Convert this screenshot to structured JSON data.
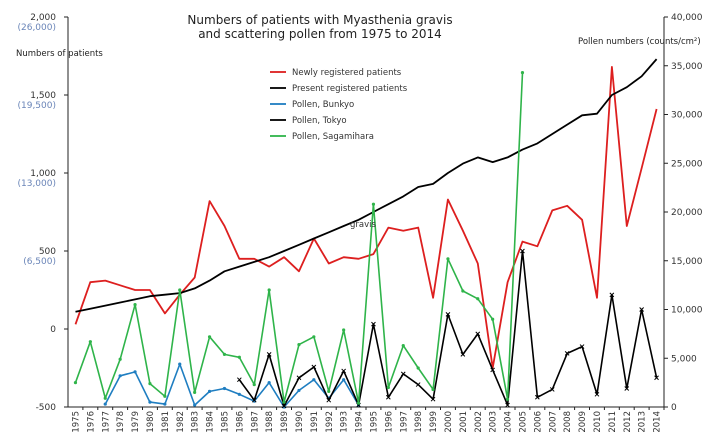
{
  "chart_data": {
    "type": "line",
    "title": [
      "Numbers of patients with Myasthenia gravis",
      "and  scattering pollen from 1975 to 2014"
    ],
    "ylabel_left": "Numbers of patients",
    "ylabel_right": "Pollen numbers (counts/cm²)",
    "yticks_left": [
      "2,000",
      "1,500",
      "1,000",
      "500",
      "0",
      "-500"
    ],
    "yticks_left_secondary": [
      "(26,000)",
      "(19,500)",
      "(13,000)",
      "(6,500)"
    ],
    "yticks_right": [
      "40,000",
      "35,000",
      "30,000",
      "25,000",
      "20,000",
      "15,000",
      "10,000",
      "5,000",
      "0"
    ],
    "ylim_left": [
      -500,
      2000
    ],
    "ylim_right": [
      0,
      40000
    ],
    "annotation": "gravis",
    "grid": false,
    "legend_position": "upper-left-center",
    "x": [
      1975,
      1976,
      1977,
      1978,
      1979,
      1980,
      1981,
      1982,
      1983,
      1984,
      1985,
      1986,
      1987,
      1988,
      1989,
      1990,
      1991,
      1992,
      1993,
      1994,
      1995,
      1996,
      1997,
      1998,
      1999,
      2000,
      2001,
      2002,
      2003,
      2004,
      2005,
      2006,
      2007,
      2008,
      2009,
      2010,
      2011,
      2012,
      2013,
      2014
    ],
    "series": [
      {
        "name": "Newly registered patients",
        "axis": "left",
        "color": "#dd1f1f",
        "values": [
          30,
          300,
          310,
          280,
          250,
          250,
          100,
          220,
          330,
          820,
          660,
          450,
          450,
          400,
          460,
          370,
          580,
          420,
          460,
          450,
          480,
          650,
          630,
          650,
          200,
          830,
          630,
          420,
          -250,
          300,
          560,
          530,
          760,
          790,
          700,
          200,
          1680,
          660,
          1030,
          1410
        ]
      },
      {
        "name": "Present registered patients",
        "axis": "left",
        "color": "#000000",
        "values": [
          110,
          130,
          150,
          170,
          190,
          210,
          220,
          230,
          260,
          310,
          370,
          400,
          430,
          460,
          500,
          540,
          580,
          620,
          660,
          700,
          750,
          800,
          850,
          910,
          930,
          1000,
          1060,
          1100,
          1070,
          1100,
          1150,
          1190,
          1250,
          1310,
          1370,
          1380,
          1500,
          1550,
          1620,
          1730
        ]
      },
      {
        "name": "Pollen, Bunkyo",
        "axis": "right",
        "color": "#1f7ec1",
        "values": [
          null,
          null,
          300,
          3200,
          3600,
          500,
          300,
          4400,
          200,
          1600,
          1900,
          1300,
          600,
          2500,
          0,
          1700,
          2800,
          900,
          2800,
          200,
          null,
          null,
          null,
          null,
          null,
          null,
          null,
          null,
          null,
          null,
          null,
          null,
          null,
          null,
          null,
          null,
          null,
          null,
          null,
          null
        ]
      },
      {
        "name": "Pollen, Tokyo",
        "axis": "right",
        "color": "#000000",
        "values": [
          null,
          null,
          null,
          null,
          null,
          null,
          null,
          null,
          null,
          null,
          null,
          2800,
          700,
          5400,
          100,
          3000,
          4100,
          700,
          3700,
          200,
          8500,
          1000,
          3400,
          2300,
          800,
          9500,
          5400,
          7500,
          3800,
          200,
          16000,
          1000,
          1800,
          5500,
          6200,
          1300,
          11500,
          1900,
          10000,
          3000
        ]
      },
      {
        "name": "Pollen, Sagamihara",
        "axis": "right",
        "color": "#2fb44a",
        "values": [
          2500,
          6700,
          900,
          4900,
          10500,
          2400,
          1100,
          12000,
          1500,
          7200,
          5400,
          5100,
          2300,
          12000,
          500,
          6400,
          7200,
          1600,
          7900,
          400,
          20800,
          2000,
          6300,
          4000,
          1800,
          15200,
          11900,
          11100,
          9000,
          800,
          34300,
          null,
          null,
          null,
          null,
          null,
          null,
          null,
          null,
          null
        ]
      }
    ]
  }
}
